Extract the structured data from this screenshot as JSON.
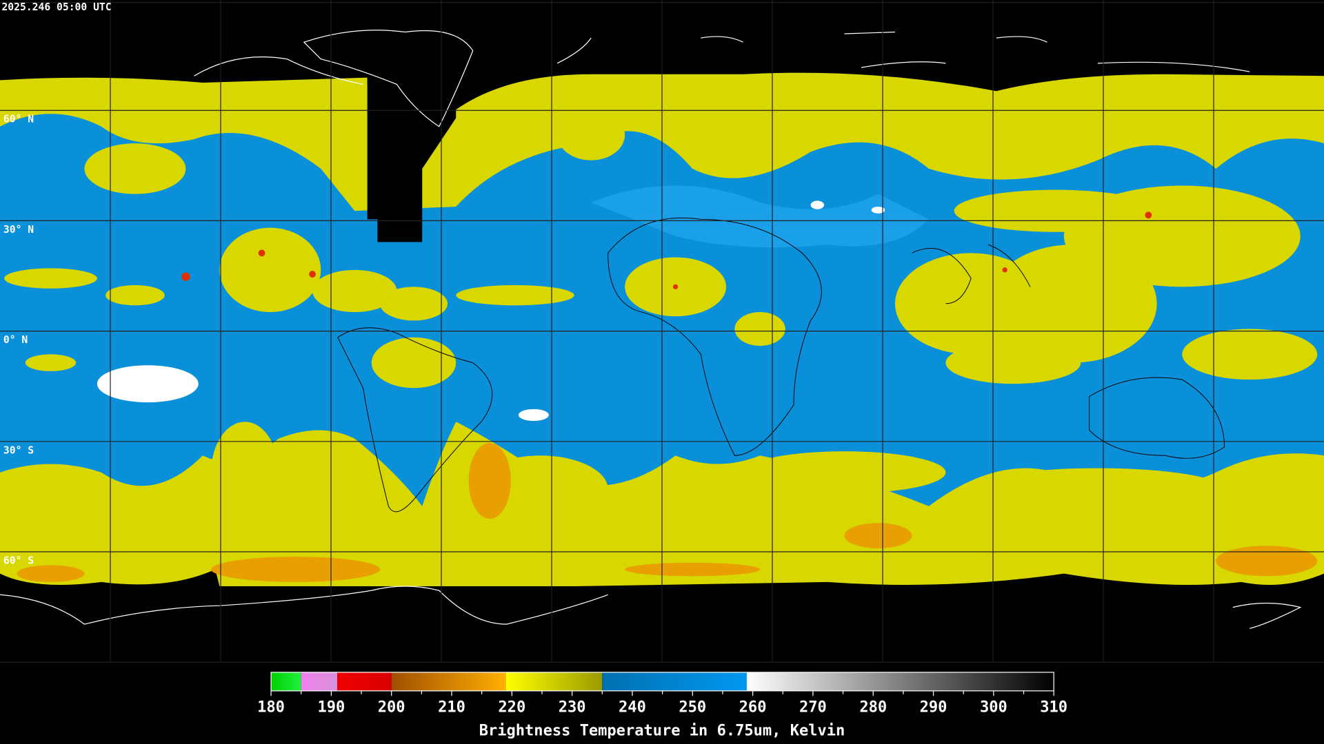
{
  "timestamp": "2025.246 05:00 UTC",
  "lat_labels": [
    "60° N",
    "30° N",
    "0° N",
    "30° S",
    "60° S"
  ],
  "colorbar": {
    "title": "Brightness Temperature in 6.75um, Kelvin",
    "range": [
      180,
      310
    ],
    "ticks": [
      180,
      190,
      200,
      210,
      220,
      230,
      240,
      250,
      260,
      270,
      280,
      290,
      300,
      310
    ],
    "segments": [
      {
        "from": 180,
        "to": 185,
        "colors": [
          "#00d000",
          "#20f040"
        ]
      },
      {
        "from": 185,
        "to": 191,
        "colors": [
          "#f080f0",
          "#d890d8"
        ]
      },
      {
        "from": 191,
        "to": 200,
        "colors": [
          "#f00000",
          "#d80000"
        ]
      },
      {
        "from": 200,
        "to": 219,
        "colors": [
          "#a05000",
          "#ffb000"
        ]
      },
      {
        "from": 219,
        "to": 235,
        "colors": [
          "#ffff00",
          "#9a9a00"
        ]
      },
      {
        "from": 235,
        "to": 259,
        "colors": [
          "#0070b0",
          "#0098f0"
        ]
      },
      {
        "from": 259,
        "to": 310,
        "colors": [
          "#ffffff",
          "#000000"
        ]
      }
    ]
  }
}
